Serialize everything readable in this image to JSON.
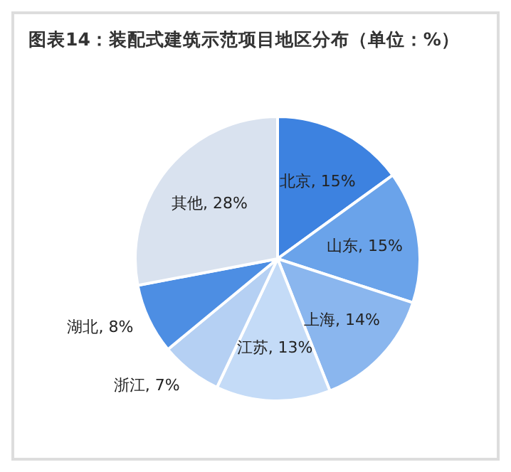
{
  "chart_data": {
    "type": "pie",
    "title": "图表14：装配式建筑示范项目地区分布（单位：%）",
    "categories": [
      "北京",
      "山东",
      "上海",
      "江苏",
      "浙江",
      "湖北",
      "其他"
    ],
    "values": [
      15,
      15,
      14,
      13,
      7,
      8,
      28
    ],
    "colors": [
      "#3d82e0",
      "#6aa3ea",
      "#8ab6ee",
      "#c4dbf7",
      "#b5d0f3",
      "#4d8ee3",
      "#d9e2ef"
    ],
    "value_labels": [
      ", 15%",
      ", 15%",
      ", 14%",
      ", 13%",
      ", 7%",
      ", 8%",
      ", 28%"
    ],
    "legend": false
  }
}
